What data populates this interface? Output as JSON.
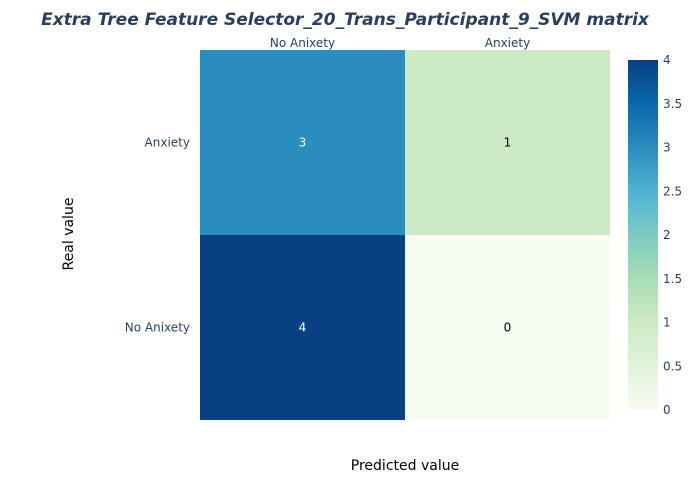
{
  "chart_data": {
    "type": "heatmap",
    "title": "Extra Tree Feature Selector_20_Trans_Participant_9_SVM matrix",
    "xlabel": "Predicted value",
    "ylabel": "Real value",
    "x_categories": [
      "No Anixety",
      "Anxiety"
    ],
    "y_categories": [
      "Anxiety",
      "No Anixety"
    ],
    "z": [
      [
        3,
        1
      ],
      [
        4,
        0
      ]
    ],
    "zlim": [
      0,
      4
    ],
    "colorbar": {
      "ticks": [
        0,
        0.5,
        1,
        1.5,
        2,
        2.5,
        3,
        3.5,
        4
      ],
      "tick_labels": [
        "0",
        "0.5",
        "1",
        "1.5",
        "2",
        "2.5",
        "3",
        "3.5",
        "4"
      ]
    },
    "colorscale": [
      "#f7fcf0",
      "#e0f3db",
      "#ccebc5",
      "#a8ddb5",
      "#7bccc4",
      "#4eb3d3",
      "#2b8cbe",
      "#0868ac",
      "#084081"
    ]
  }
}
